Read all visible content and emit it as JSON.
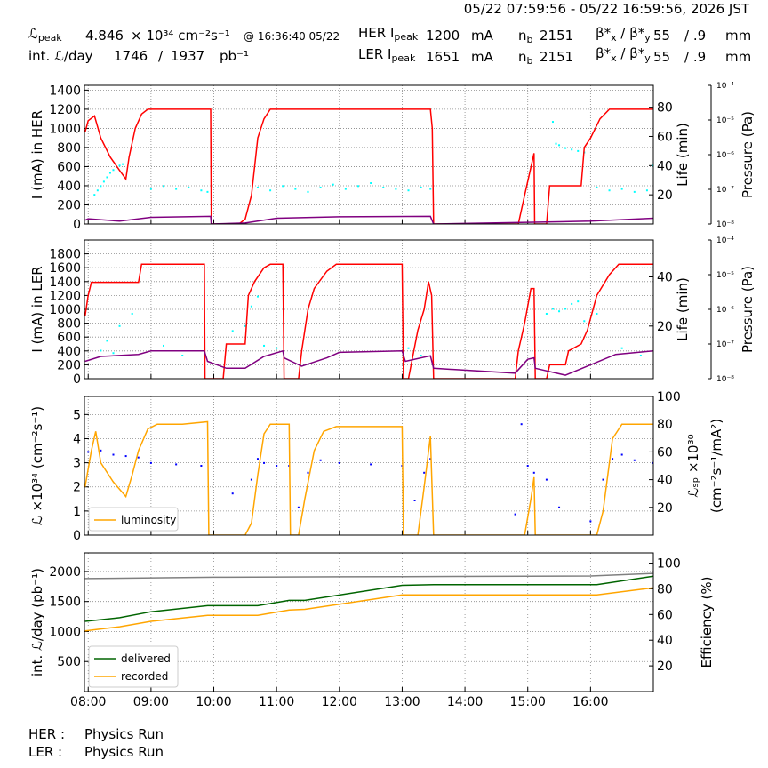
{
  "header": {
    "timestamp": "05/22 07:59:56 - 05/22 16:59:56, 2026 JST",
    "l_peak": {
      "symbol": "ℒ",
      "sub": "peak"
    },
    "l_peak_value": 4.846,
    "l_peak_unit": "× 10³⁴ cm⁻²s⁻¹",
    "l_peak_time": "@ 16:36:40 05/22",
    "her_ipeak": {
      "main": "HER I",
      "sub": "peak"
    },
    "her_ipeak_value": 1200,
    "her_ipeak_unit": "mA",
    "her_nb": {
      "main": "n",
      "sub": "b"
    },
    "her_nb_value": 2151,
    "her_beta": [
      "β*",
      "x",
      " / β*",
      "y"
    ],
    "her_beta_x": 55,
    "her_beta_y": "/ .9",
    "her_beta_unit": "mm",
    "int_label": "int. ℒ/day",
    "int_value_1": 1746,
    "int_sep": "/",
    "int_value_2": 1937,
    "int_unit": "pb⁻¹",
    "ler_ipeak": {
      "main": "LER I",
      "sub": "peak"
    },
    "ler_ipeak_value": 1651,
    "ler_ipeak_unit": "mA",
    "ler_nb": {
      "main": "n",
      "sub": "b"
    },
    "ler_nb_value": 2151,
    "ler_beta": [
      "β*",
      "x",
      " / β*",
      "y"
    ],
    "ler_beta_x": 55,
    "ler_beta_y": "/ .9",
    "ler_beta_unit": "mm"
  },
  "footer": [
    {
      "ring": "HER :",
      "status": "Physics Run"
    },
    {
      "ring": "LER :",
      "status": "Physics Run"
    }
  ],
  "chart_data": [
    {
      "type": "line",
      "ylabel": "I (mA) in HER",
      "y2label": "Life (min)",
      "xlim": [
        7.94,
        17.0
      ],
      "xticks": [
        8,
        9,
        10,
        11,
        12,
        13,
        14,
        15,
        16
      ],
      "ylim": [
        0,
        1450
      ],
      "yticks": [
        0,
        200,
        400,
        600,
        800,
        1000,
        1200,
        1400
      ],
      "y2lim": [
        0,
        95
      ],
      "y2ticks": [
        20,
        40,
        60,
        80
      ],
      "grid": true,
      "pressure_axis": {
        "label": "Pressure (Pa)",
        "ylim": [
          1e-08,
          0.0001
        ],
        "log": true,
        "yticks": [
          {
            "value": 1e-08,
            "label": "10⁻⁸"
          },
          {
            "value": 1e-07,
            "label": "10⁻⁷"
          },
          {
            "value": 1e-06,
            "label": "10⁻⁶"
          },
          {
            "value": 1e-05,
            "label": "10⁻⁵"
          },
          {
            "value": 0.0001,
            "label": "10⁻⁴"
          }
        ]
      },
      "series": [
        {
          "color": "#00ffff",
          "style": "scatter",
          "axis": "y2",
          "x": [
            8.1,
            8.15,
            8.2,
            8.25,
            8.3,
            8.35,
            8.4,
            8.45,
            8.5,
            8.55,
            9.0,
            9.2,
            9.4,
            9.6,
            9.8,
            9.9,
            10.7,
            10.9,
            11.1,
            11.3,
            11.5,
            11.7,
            11.9,
            12.1,
            12.3,
            12.5,
            12.7,
            12.9,
            13.1,
            13.3,
            13.45,
            15.4,
            15.45,
            15.5,
            15.6,
            15.7,
            15.8,
            15.9,
            16.1,
            16.3,
            16.5,
            16.7,
            16.9,
            17.0
          ],
          "values": [
            20,
            23,
            26,
            29,
            32,
            35,
            37,
            39,
            40,
            41,
            24,
            26,
            24,
            25,
            23,
            22,
            25,
            23,
            26,
            24,
            22,
            25,
            27,
            24,
            26,
            28,
            25,
            24,
            23,
            25,
            24,
            70,
            55,
            54,
            52,
            51,
            50,
            49,
            25,
            23,
            24,
            22,
            23,
            40
          ]
        },
        {
          "color": "#ff0000",
          "style": "line",
          "x": [
            7.95,
            8.0,
            8.1,
            8.2,
            8.35,
            8.5,
            8.6,
            8.65,
            8.75,
            8.85,
            8.95,
            9.95,
            9.96,
            10.4,
            10.5,
            10.6,
            10.7,
            10.8,
            10.9,
            11.0,
            13.45,
            13.48,
            13.5,
            14.85,
            14.95,
            15.1,
            15.11,
            15.3,
            15.35,
            15.85,
            15.9,
            16.0,
            16.15,
            16.3,
            17.0
          ],
          "values": [
            960,
            1080,
            1130,
            900,
            700,
            560,
            470,
            700,
            1000,
            1150,
            1200,
            1200,
            0,
            0,
            50,
            300,
            900,
            1100,
            1200,
            1200,
            1200,
            1000,
            0,
            0,
            300,
            740,
            0,
            0,
            400,
            400,
            800,
            900,
            1100,
            1200,
            1200
          ]
        },
        {
          "color": "#800080",
          "style": "line",
          "x": [
            7.95,
            8.0,
            8.5,
            9.0,
            9.95,
            9.96,
            10.5,
            11.0,
            12.0,
            13.45,
            13.5,
            16.0,
            17.0
          ],
          "values": [
            40,
            55,
            30,
            70,
            80,
            0,
            10,
            60,
            75,
            80,
            0,
            30,
            60
          ]
        }
      ]
    },
    {
      "type": "line",
      "ylabel": "I (mA) in LER",
      "y2label": "Life (min)",
      "xlim": [
        7.94,
        17.0
      ],
      "xticks": [
        8,
        9,
        10,
        11,
        12,
        13,
        14,
        15,
        16
      ],
      "ylim": [
        0,
        2000
      ],
      "yticks": [
        0,
        200,
        400,
        600,
        800,
        1000,
        1200,
        1400,
        1600,
        1800
      ],
      "y2lim": [
        -1.4,
        55
      ],
      "y2ticks": [
        20,
        40
      ],
      "grid": true,
      "pressure_axis": {
        "label": "Pressure (Pa)",
        "ylim": [
          1e-08,
          0.0001
        ],
        "log": true,
        "yticks": [
          {
            "value": 1e-08,
            "label": "10⁻⁸"
          },
          {
            "value": 1e-07,
            "label": "10⁻⁷"
          },
          {
            "value": 1e-06,
            "label": "10⁻⁶"
          },
          {
            "value": 1e-05,
            "label": "10⁻⁵"
          },
          {
            "value": 0.0001,
            "label": "10⁻⁴"
          }
        ]
      },
      "series": [
        {
          "color": "#00ffff",
          "style": "scatter",
          "axis": "y2",
          "x": [
            8.2,
            8.3,
            8.4,
            8.5,
            8.7,
            9.2,
            9.5,
            10.3,
            10.5,
            10.6,
            10.7,
            10.8,
            11.0,
            13.1,
            13.3,
            15.3,
            15.4,
            15.5,
            15.6,
            15.7,
            15.8,
            15.9,
            16.1,
            16.5,
            16.8
          ],
          "values": [
            10,
            14,
            9,
            20,
            25,
            12,
            8,
            18,
            20,
            28,
            32,
            12,
            11,
            11,
            8,
            25,
            27,
            26,
            27,
            29,
            30,
            22,
            25,
            11,
            8
          ]
        },
        {
          "color": "#ff0000",
          "style": "line",
          "x": [
            7.95,
            8.0,
            8.05,
            8.8,
            8.85,
            9.85,
            9.86,
            10.15,
            10.2,
            10.5,
            10.55,
            10.65,
            10.8,
            10.9,
            11.1,
            11.12,
            11.35,
            11.4,
            11.5,
            11.6,
            11.8,
            11.95,
            13.0,
            13.02,
            13.1,
            13.25,
            13.35,
            13.42,
            13.47,
            13.5,
            14.8,
            14.85,
            14.95,
            15.05,
            15.1,
            15.12,
            15.3,
            15.35,
            15.6,
            15.65,
            15.85,
            15.95,
            16.1,
            16.3,
            16.45,
            17.0
          ],
          "values": [
            900,
            1200,
            1390,
            1390,
            1650,
            1650,
            0,
            0,
            500,
            500,
            1200,
            1400,
            1600,
            1650,
            1650,
            0,
            0,
            400,
            1000,
            1300,
            1550,
            1650,
            1650,
            0,
            0,
            700,
            1000,
            1400,
            1200,
            0,
            0,
            400,
            800,
            1300,
            1300,
            0,
            0,
            200,
            200,
            400,
            500,
            700,
            1200,
            1500,
            1650,
            1650
          ]
        },
        {
          "color": "#800080",
          "style": "line",
          "x": [
            7.95,
            8.2,
            8.8,
            9.0,
            9.85,
            9.9,
            10.2,
            10.5,
            10.8,
            11.1,
            11.12,
            11.4,
            11.8,
            12.0,
            13.0,
            13.05,
            13.45,
            13.5,
            14.8,
            15.0,
            15.1,
            15.12,
            15.6,
            16.0,
            16.4,
            17.0
          ],
          "values": [
            250,
            320,
            350,
            400,
            400,
            250,
            150,
            150,
            320,
            400,
            300,
            180,
            300,
            380,
            400,
            250,
            330,
            150,
            80,
            280,
            300,
            150,
            50,
            200,
            350,
            400
          ]
        }
      ]
    },
    {
      "type": "line",
      "ylabel": "ℒ ×10³⁴ (cm⁻²s⁻¹)",
      "y2label": [
        "ℒₛₚ ×10³⁰",
        "(cm⁻²s⁻¹/mA²)"
      ],
      "xlim": [
        7.94,
        17.0
      ],
      "xticks": [
        8,
        9,
        10,
        11,
        12,
        13,
        14,
        15,
        16
      ],
      "ylim": [
        0,
        5.75
      ],
      "yticks": [
        0,
        1,
        2,
        3,
        4,
        5
      ],
      "y2lim": [
        0,
        100
      ],
      "y2ticks": [
        20,
        40,
        60,
        80,
        100
      ],
      "grid": true,
      "legend": "lower left",
      "series": [
        {
          "color": "#0000ff",
          "style": "scatter",
          "axis": "y2",
          "x": [
            8.0,
            8.2,
            8.4,
            8.6,
            8.8,
            9.0,
            9.4,
            9.8,
            10.3,
            10.6,
            10.7,
            10.8,
            11.0,
            11.2,
            11.35,
            11.5,
            11.7,
            12.0,
            12.5,
            13.0,
            13.2,
            13.35,
            13.45,
            14.8,
            14.9,
            15.0,
            15.1,
            15.3,
            15.5,
            16.0,
            16.2,
            16.35,
            16.5,
            16.7,
            17.0
          ],
          "values": [
            60,
            61,
            58,
            57,
            56,
            52,
            51,
            50,
            30,
            40,
            55,
            52,
            50,
            50,
            20,
            45,
            54,
            52,
            51,
            50,
            25,
            45,
            55,
            15,
            80,
            50,
            45,
            40,
            20,
            10,
            40,
            55,
            58,
            54,
            52
          ]
        },
        {
          "name": "luminosity",
          "color": "#ffa500",
          "style": "line",
          "x": [
            7.95,
            8.05,
            8.12,
            8.2,
            8.4,
            8.6,
            8.7,
            8.8,
            8.95,
            9.1,
            9.5,
            9.9,
            9.92,
            10.5,
            10.6,
            10.7,
            10.8,
            10.9,
            11.2,
            11.22,
            11.35,
            11.45,
            11.6,
            11.75,
            11.95,
            13.0,
            13.02,
            13.25,
            13.35,
            13.45,
            13.5,
            14.95,
            15.05,
            15.1,
            15.12,
            16.1,
            16.2,
            16.35,
            16.5,
            17.0
          ],
          "values": [
            2.0,
            3.5,
            4.3,
            3.0,
            2.2,
            1.6,
            2.5,
            3.5,
            4.4,
            4.6,
            4.6,
            4.7,
            0,
            0,
            0.5,
            2.5,
            4.2,
            4.6,
            4.6,
            0,
            0,
            1.5,
            3.5,
            4.3,
            4.5,
            4.5,
            0,
            0,
            2.0,
            4.1,
            0,
            0,
            1.5,
            2.4,
            0,
            0,
            1.0,
            4.0,
            4.6,
            4.6
          ]
        }
      ]
    },
    {
      "type": "line",
      "ylabel": "int. ℒ/day (pb⁻¹)",
      "y2label": "Efficiency (%)",
      "xlim": [
        7.94,
        17.0
      ],
      "xticks": [
        {
          "value": 8,
          "label": "08:00"
        },
        {
          "value": 9,
          "label": "09:00"
        },
        {
          "value": 10,
          "label": "10:00"
        },
        {
          "value": 11,
          "label": "11:00"
        },
        {
          "value": 12,
          "label": "12:00"
        },
        {
          "value": 13,
          "label": "13:00"
        },
        {
          "value": 14,
          "label": "14:00"
        },
        {
          "value": 15,
          "label": "15:00"
        },
        {
          "value": 16,
          "label": "16:00"
        }
      ],
      "ylim": [
        0,
        2310
      ],
      "yticks": [
        500,
        1000,
        1500,
        2000
      ],
      "y2lim": [
        0,
        108
      ],
      "y2ticks": [
        20,
        40,
        60,
        80,
        100
      ],
      "grid": true,
      "legend": "lower left",
      "series": [
        {
          "color": "#808080",
          "style": "line",
          "axis": "y2",
          "x": [
            7.95,
            10.0,
            13.0,
            16.0,
            17.0
          ],
          "values": [
            88,
            89,
            89.5,
            90,
            92
          ]
        },
        {
          "name": "delivered",
          "color": "#006400",
          "style": "line",
          "x": [
            7.95,
            8.5,
            9.0,
            9.9,
            10.7,
            11.2,
            11.45,
            13.0,
            13.5,
            16.1,
            17.0
          ],
          "values": [
            1170,
            1230,
            1330,
            1430,
            1430,
            1520,
            1520,
            1770,
            1780,
            1780,
            1920
          ]
        },
        {
          "name": "recorded",
          "color": "#ffa500",
          "style": "line",
          "x": [
            7.95,
            8.5,
            9.0,
            9.9,
            10.7,
            11.2,
            11.45,
            13.0,
            13.5,
            16.1,
            17.0
          ],
          "values": [
            1010,
            1080,
            1170,
            1270,
            1270,
            1360,
            1370,
            1610,
            1610,
            1610,
            1730
          ]
        }
      ]
    }
  ]
}
